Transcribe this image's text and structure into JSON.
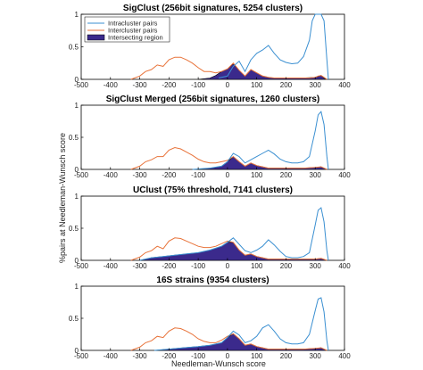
{
  "figure": {
    "xlabel": "Needleman-Wunsch score",
    "ylabel": "%pairs at Needleman-Wunsch score"
  },
  "colors": {
    "intracluster": "#3a8fd1",
    "intercluster": "#e8733a",
    "intersecting_fill": "#3b2a8c",
    "intersecting_edge": "#000000",
    "axis": "#000000"
  },
  "legend": {
    "items": [
      "Intracluster pairs",
      "Intercluster pairs",
      "Intersecting region"
    ],
    "placement": "top-left of first panel"
  },
  "chart_data": [
    {
      "type": "area",
      "title": "SigClust (256bit signatures, 5254 clusters)",
      "xlim": [
        -500,
        400
      ],
      "ylim": [
        0,
        1
      ],
      "xticks": [
        -500,
        -400,
        -300,
        -200,
        -100,
        0,
        100,
        200,
        300,
        400
      ],
      "yticks": [
        0,
        0.5,
        1
      ],
      "series": [
        {
          "name": "Intracluster pairs",
          "x": [
            -30,
            0,
            20,
            40,
            60,
            80,
            100,
            120,
            140,
            160,
            180,
            200,
            220,
            240,
            260,
            280,
            290,
            300,
            310,
            320,
            330,
            340,
            345
          ],
          "values": [
            0.02,
            0.05,
            0.2,
            0.28,
            0.12,
            0.3,
            0.4,
            0.45,
            0.52,
            0.4,
            0.3,
            0.26,
            0.24,
            0.25,
            0.35,
            0.6,
            0.9,
            1.0,
            1.0,
            1.0,
            0.9,
            0.3,
            0.0
          ]
        },
        {
          "name": "Intercluster pairs",
          "x": [
            -330,
            -300,
            -280,
            -260,
            -240,
            -220,
            -200,
            -180,
            -160,
            -140,
            -120,
            -100,
            -80,
            -60,
            -40,
            -20,
            0,
            20,
            40,
            60,
            80,
            100,
            120,
            140,
            160,
            180,
            200,
            220,
            240,
            260,
            280,
            300,
            310,
            320,
            330,
            340
          ],
          "values": [
            0.0,
            0.05,
            0.12,
            0.15,
            0.22,
            0.2,
            0.3,
            0.34,
            0.34,
            0.3,
            0.25,
            0.18,
            0.12,
            0.12,
            0.1,
            0.12,
            0.16,
            0.25,
            0.14,
            0.05,
            0.15,
            0.1,
            0.05,
            0.03,
            0.02,
            0.02,
            0.02,
            0.02,
            0.02,
            0.02,
            0.02,
            0.03,
            0.05,
            0.06,
            0.03,
            0.0
          ]
        },
        {
          "name": "Intersecting region",
          "x": [
            -100,
            -60,
            -40,
            -20,
            0,
            20,
            40,
            60,
            80,
            100,
            120,
            140,
            160,
            200,
            250,
            300,
            320,
            335
          ],
          "values": [
            0.0,
            0.02,
            0.06,
            0.12,
            0.16,
            0.24,
            0.14,
            0.05,
            0.15,
            0.1,
            0.05,
            0.03,
            0.02,
            0.02,
            0.02,
            0.03,
            0.06,
            0.0
          ]
        }
      ]
    },
    {
      "type": "area",
      "title": "SigClust Merged (256bit signatures, 1260 clusters)",
      "xlim": [
        -500,
        400
      ],
      "ylim": [
        0,
        1
      ],
      "xticks": [
        -500,
        -400,
        -300,
        -200,
        -100,
        0,
        100,
        200,
        300,
        400
      ],
      "yticks": [
        0,
        0.5,
        1
      ],
      "series": [
        {
          "name": "Intracluster pairs",
          "x": [
            -120,
            -60,
            -20,
            0,
            20,
            40,
            60,
            80,
            100,
            120,
            140,
            160,
            180,
            200,
            220,
            240,
            260,
            280,
            300,
            310,
            320,
            330,
            340,
            345
          ],
          "values": [
            0.0,
            0.02,
            0.05,
            0.12,
            0.25,
            0.2,
            0.1,
            0.15,
            0.2,
            0.25,
            0.3,
            0.24,
            0.16,
            0.12,
            0.1,
            0.1,
            0.12,
            0.2,
            0.6,
            0.85,
            0.9,
            0.7,
            0.2,
            0.0
          ]
        },
        {
          "name": "Intercluster pairs",
          "x": [
            -330,
            -300,
            -280,
            -260,
            -240,
            -220,
            -200,
            -180,
            -160,
            -140,
            -120,
            -100,
            -80,
            -60,
            -40,
            -20,
            0,
            20,
            40,
            60,
            80,
            100,
            120,
            140,
            160,
            200,
            260,
            300,
            320,
            340
          ],
          "values": [
            0.0,
            0.05,
            0.12,
            0.15,
            0.2,
            0.2,
            0.3,
            0.34,
            0.32,
            0.27,
            0.22,
            0.16,
            0.12,
            0.1,
            0.1,
            0.12,
            0.14,
            0.2,
            0.12,
            0.05,
            0.1,
            0.06,
            0.04,
            0.02,
            0.02,
            0.02,
            0.02,
            0.03,
            0.04,
            0.0
          ]
        },
        {
          "name": "Intersecting region",
          "x": [
            -120,
            -80,
            -60,
            -40,
            -20,
            0,
            20,
            40,
            60,
            80,
            100,
            120,
            140,
            160,
            200,
            260,
            300,
            320,
            340
          ],
          "values": [
            0.0,
            0.01,
            0.02,
            0.03,
            0.05,
            0.12,
            0.2,
            0.12,
            0.05,
            0.1,
            0.06,
            0.04,
            0.02,
            0.02,
            0.02,
            0.02,
            0.03,
            0.04,
            0.0
          ]
        }
      ]
    },
    {
      "type": "area",
      "title": "UClust (75% threshold, 7141 clusters)",
      "xlim": [
        -500,
        400
      ],
      "ylim": [
        0,
        1
      ],
      "xticks": [
        -500,
        -400,
        -300,
        -200,
        -100,
        0,
        100,
        200,
        300,
        400
      ],
      "yticks": [
        0,
        0.5,
        1
      ],
      "series": [
        {
          "name": "Intracluster pairs",
          "x": [
            -300,
            -260,
            -220,
            -180,
            -140,
            -100,
            -60,
            -20,
            0,
            20,
            40,
            60,
            80,
            100,
            120,
            140,
            160,
            180,
            200,
            220,
            240,
            260,
            280,
            300,
            310,
            320,
            330,
            340,
            345
          ],
          "values": [
            0.0,
            0.04,
            0.06,
            0.08,
            0.1,
            0.12,
            0.16,
            0.22,
            0.28,
            0.35,
            0.25,
            0.15,
            0.12,
            0.16,
            0.22,
            0.32,
            0.24,
            0.14,
            0.06,
            0.04,
            0.04,
            0.06,
            0.12,
            0.55,
            0.78,
            0.82,
            0.6,
            0.15,
            0.0
          ]
        },
        {
          "name": "Intercluster pairs",
          "x": [
            -330,
            -300,
            -280,
            -260,
            -240,
            -220,
            -200,
            -180,
            -160,
            -140,
            -120,
            -100,
            -80,
            -60,
            -40,
            -20,
            0,
            20,
            40,
            60,
            80,
            100,
            120,
            140,
            160,
            200,
            260,
            300,
            320,
            340
          ],
          "values": [
            0.0,
            0.05,
            0.12,
            0.15,
            0.22,
            0.18,
            0.3,
            0.35,
            0.34,
            0.3,
            0.26,
            0.22,
            0.2,
            0.2,
            0.22,
            0.26,
            0.3,
            0.28,
            0.16,
            0.08,
            0.1,
            0.06,
            0.04,
            0.02,
            0.02,
            0.02,
            0.02,
            0.02,
            0.03,
            0.0
          ]
        },
        {
          "name": "Intersecting region",
          "x": [
            -300,
            -260,
            -220,
            -180,
            -140,
            -100,
            -60,
            -20,
            0,
            20,
            40,
            60,
            80,
            100,
            120,
            140,
            160,
            200,
            260,
            300,
            320,
            340
          ],
          "values": [
            0.0,
            0.04,
            0.06,
            0.08,
            0.1,
            0.12,
            0.16,
            0.22,
            0.28,
            0.28,
            0.16,
            0.08,
            0.1,
            0.06,
            0.04,
            0.02,
            0.02,
            0.02,
            0.02,
            0.02,
            0.03,
            0.0
          ]
        }
      ]
    },
    {
      "type": "area",
      "title": "16S strains (9354 clusters)",
      "xlim": [
        -500,
        400
      ],
      "ylim": [
        0,
        1
      ],
      "xticks": [
        -500,
        -400,
        -300,
        -200,
        -100,
        0,
        100,
        200,
        300,
        400
      ],
      "yticks": [
        0,
        0.5,
        1
      ],
      "series": [
        {
          "name": "Intracluster pairs",
          "x": [
            -250,
            -200,
            -150,
            -100,
            -60,
            -20,
            0,
            20,
            40,
            60,
            80,
            100,
            120,
            140,
            160,
            180,
            200,
            220,
            240,
            260,
            280,
            300,
            310,
            320,
            330,
            340,
            345
          ],
          "values": [
            0.0,
            0.02,
            0.04,
            0.06,
            0.08,
            0.12,
            0.2,
            0.3,
            0.24,
            0.12,
            0.15,
            0.22,
            0.35,
            0.4,
            0.3,
            0.18,
            0.12,
            0.1,
            0.1,
            0.12,
            0.25,
            0.62,
            0.8,
            0.82,
            0.6,
            0.15,
            0.0
          ]
        },
        {
          "name": "Intercluster pairs",
          "x": [
            -330,
            -300,
            -280,
            -260,
            -240,
            -220,
            -200,
            -180,
            -160,
            -140,
            -120,
            -100,
            -80,
            -60,
            -40,
            -20,
            0,
            20,
            40,
            60,
            80,
            100,
            120,
            140,
            160,
            200,
            260,
            300,
            320,
            340
          ],
          "values": [
            0.0,
            0.05,
            0.12,
            0.15,
            0.22,
            0.2,
            0.3,
            0.35,
            0.34,
            0.3,
            0.25,
            0.18,
            0.14,
            0.12,
            0.12,
            0.16,
            0.22,
            0.26,
            0.18,
            0.08,
            0.1,
            0.06,
            0.04,
            0.02,
            0.02,
            0.02,
            0.02,
            0.03,
            0.04,
            0.0
          ]
        },
        {
          "name": "Intersecting region",
          "x": [
            -250,
            -200,
            -150,
            -100,
            -60,
            -20,
            0,
            20,
            40,
            60,
            80,
            100,
            120,
            140,
            160,
            200,
            260,
            300,
            320,
            340
          ],
          "values": [
            0.0,
            0.02,
            0.04,
            0.06,
            0.08,
            0.12,
            0.2,
            0.26,
            0.18,
            0.08,
            0.1,
            0.06,
            0.04,
            0.02,
            0.02,
            0.02,
            0.02,
            0.03,
            0.04,
            0.0
          ]
        }
      ]
    }
  ]
}
